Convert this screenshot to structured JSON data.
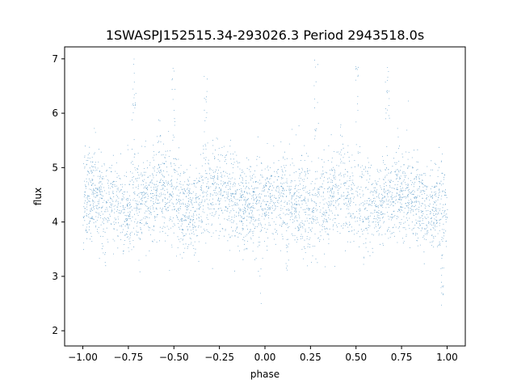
{
  "chart_data": {
    "type": "scatter",
    "title": "1SWASPJ152515.34-293026.3 Period 2943518.0s",
    "xlabel": "phase",
    "ylabel": "flux",
    "xlim": [
      -1.1,
      1.1
    ],
    "ylim": [
      1.72,
      7.22
    ],
    "xticks": [
      -1.0,
      -0.75,
      -0.5,
      -0.25,
      0.0,
      0.25,
      0.5,
      0.75,
      1.0
    ],
    "xtick_labels": [
      "−1.00",
      "−0.75",
      "−0.50",
      "−0.25",
      "0.00",
      "0.25",
      "0.50",
      "0.75",
      "1.00"
    ],
    "yticks": [
      2,
      3,
      4,
      5,
      6,
      7
    ],
    "ytick_labels": [
      "2",
      "3",
      "4",
      "5",
      "6",
      "7"
    ],
    "grid": false,
    "marker_color": "#1f77b4",
    "series": [
      {
        "x_range": [
          -1.0,
          1.0
        ],
        "baseline_flux": 4.4,
        "typical_scatter": [
          3.6,
          5.2
        ],
        "flares": [
          {
            "x": -0.72,
            "y_max": 7.05
          },
          {
            "x": -0.5,
            "y_max": 7.0
          },
          {
            "x": -0.33,
            "y_max": 6.9
          },
          {
            "x": 0.28,
            "y_max": 7.05
          },
          {
            "x": 0.5,
            "y_max": 7.0
          },
          {
            "x": 0.67,
            "y_max": 6.9
          },
          {
            "x": -0.58,
            "y_max": 5.9
          },
          {
            "x": 0.42,
            "y_max": 5.9
          }
        ],
        "dips": [
          {
            "x": -0.03,
            "y_min": 2.45
          },
          {
            "x": 0.97,
            "y_min": 2.45
          },
          {
            "x": -0.88,
            "y_min": 3.1
          },
          {
            "x": 0.12,
            "y_min": 3.1
          },
          {
            "x": -0.45,
            "y_min": 3.3
          },
          {
            "x": 0.55,
            "y_min": 3.3
          }
        ]
      }
    ]
  }
}
